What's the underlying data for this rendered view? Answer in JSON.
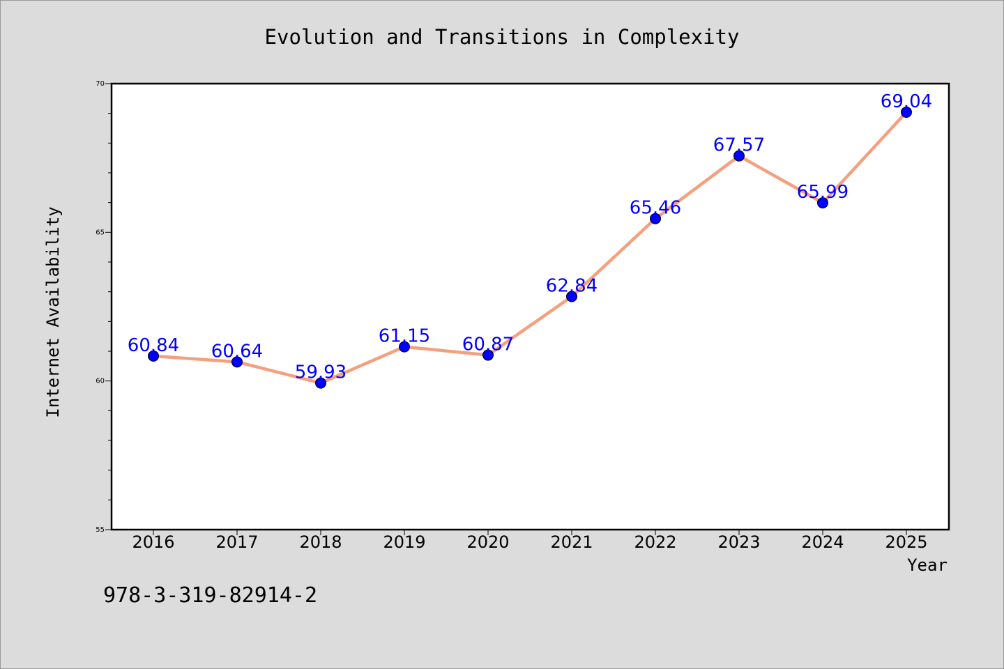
{
  "chart_data": {
    "type": "line",
    "title": "Evolution and Transitions in Complexity",
    "xlabel": "Year",
    "ylabel": "Internet Availability",
    "categories": [
      "2016",
      "2017",
      "2018",
      "2019",
      "2020",
      "2021",
      "2022",
      "2023",
      "2024",
      "2025"
    ],
    "series": [
      {
        "values": [
          60.84,
          60.64,
          59.93,
          61.15,
          60.87,
          62.84,
          65.46,
          67.57,
          65.99,
          69.04
        ],
        "line_color": "#f4a07e",
        "marker_color": "#0000ff",
        "label_color": "#0000ff"
      }
    ],
    "ylim": [
      55,
      70
    ],
    "yticks": [
      55,
      60,
      65,
      70
    ],
    "grid": false,
    "legend": "none"
  },
  "footer_text": "978-3-319-82914-2",
  "colors": {
    "background": "#dcdcdc",
    "plot_area": "#ffffff",
    "axis": "#000000"
  }
}
